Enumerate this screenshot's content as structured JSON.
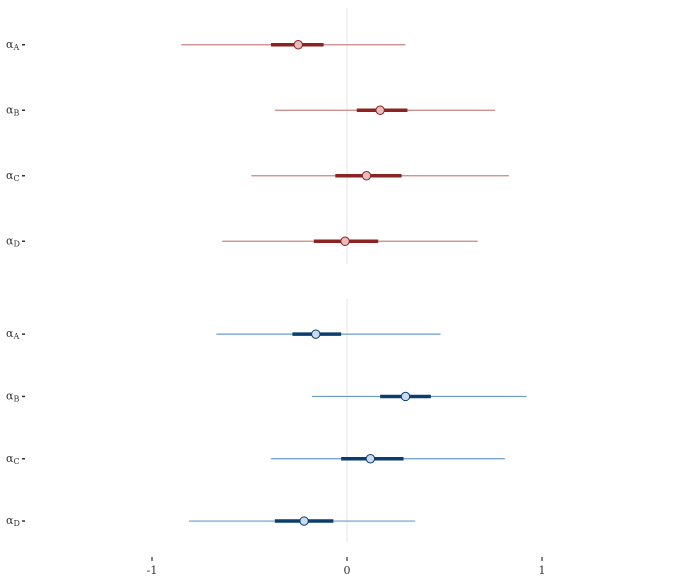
{
  "chart_data": [
    {
      "type": "pointrange",
      "categories": [
        "αA",
        "αB",
        "αC",
        "αD"
      ],
      "values": [
        -0.25,
        0.17,
        0.1,
        -0.01
      ],
      "inner_lower": [
        -0.39,
        0.05,
        -0.06,
        -0.17
      ],
      "inner_upper": [
        -0.12,
        0.31,
        0.28,
        0.16
      ],
      "lower": [
        -0.85,
        -0.37,
        -0.49,
        -0.64
      ],
      "upper": [
        0.3,
        0.76,
        0.83,
        0.67
      ],
      "color": "#8b2323",
      "light_color": "#c98585",
      "fill_color": "#e8bcbc",
      "xlim": [
        -1.6,
        1.6
      ],
      "vline": 0
    },
    {
      "type": "pointrange",
      "categories": [
        "αA",
        "αB",
        "αC",
        "αD"
      ],
      "values": [
        -0.16,
        0.3,
        0.12,
        -0.22
      ],
      "inner_lower": [
        -0.28,
        0.17,
        -0.03,
        -0.37
      ],
      "inner_upper": [
        -0.03,
        0.43,
        0.29,
        -0.07
      ],
      "lower": [
        -0.67,
        -0.18,
        -0.39,
        -0.81
      ],
      "upper": [
        0.48,
        0.92,
        0.81,
        0.35
      ],
      "color": "#0b3d6e",
      "light_color": "#6a9ccc",
      "fill_color": "#c9dbee",
      "xlim": [
        -1.6,
        1.6
      ],
      "vline": 0,
      "xticks": [
        -1,
        0,
        1
      ]
    }
  ]
}
